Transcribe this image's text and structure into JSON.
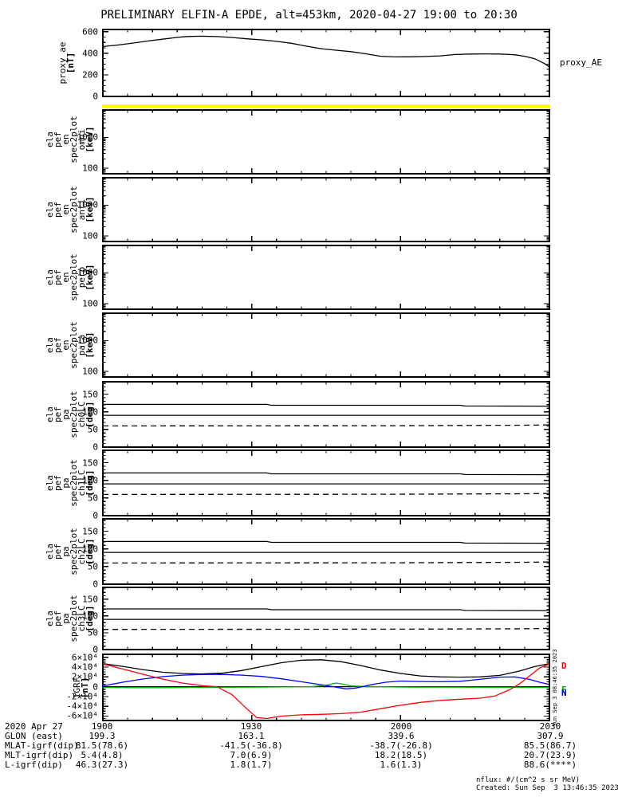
{
  "title": "PRELIMINARY ELFIN-A EPDE, alt=453km, 2020-04-27 19:00 to 20:30",
  "side_stamp": "Sun Sep 3 08:46:35 2023",
  "footer": {
    "nflux": "nflux: #/(cm^2 s sr MeV)",
    "created": "Created: Sun Sep  3 13:46:35 2023"
  },
  "colors": {
    "frame": "#000000",
    "quality_bar": "#ffff00",
    "black_line": "#000000",
    "red_line": "#ff0000",
    "blue_line": "#0000ff",
    "green_line": "#00b400"
  },
  "bottom_table": {
    "rows": [
      {
        "label": "2020 Apr 27",
        "values": [
          "1900",
          "1930",
          "2000",
          "2030"
        ]
      },
      {
        "label": "GLON (east)",
        "values": [
          "199.3",
          "163.1",
          "339.6",
          "307.9"
        ]
      },
      {
        "label": "MLAT-igrf(dip)",
        "values": [
          "81.5(78.6)",
          "-41.5(-36.8)",
          "-38.7(-26.8)",
          "85.5(86.7)"
        ]
      },
      {
        "label": "MLT-igrf(dip)",
        "values": [
          "5.4(4.8)",
          "7.0(6.9)",
          "18.2(18.5)",
          "20.7(23.9)"
        ]
      },
      {
        "label": "L-igrf(dip)",
        "values": [
          "46.3(27.3)",
          "1.8(1.7)",
          "1.6(1.3)",
          "88.6(****)"
        ]
      }
    ]
  },
  "chart_data": [
    {
      "id": "proxy_ae",
      "type": "line",
      "ylabel_words": "proxy_ae",
      "ylabel_unit": "[nT]",
      "right_label": "proxy_AE",
      "xlim": [
        0,
        90
      ],
      "xticks": [
        0,
        30,
        60,
        90
      ],
      "xminor_step": 5,
      "xtick_times": [
        "1900",
        "1930",
        "2000",
        "2030"
      ],
      "ylim": [
        0,
        620
      ],
      "yminor_step": 50,
      "yticks": [
        {
          "v": 0,
          "l": "0"
        },
        {
          "v": 200,
          "l": "200"
        },
        {
          "v": 400,
          "l": "400"
        },
        {
          "v": 600,
          "l": "600"
        }
      ],
      "series": [
        {
          "name": "proxy_AE",
          "color": "#000000",
          "t": [
            0,
            3,
            6,
            9,
            12,
            15,
            17,
            20,
            23,
            26,
            29,
            32,
            35,
            38,
            41,
            44,
            47,
            50,
            53,
            56,
            59,
            62,
            65,
            68,
            71,
            74,
            77,
            80,
            83,
            85,
            87,
            89,
            90
          ],
          "v": [
            462,
            476,
            494,
            513,
            530,
            547,
            555,
            558,
            554,
            546,
            534,
            524,
            510,
            492,
            466,
            442,
            428,
            415,
            395,
            372,
            366,
            367,
            370,
            376,
            388,
            393,
            394,
            393,
            386,
            372,
            350,
            305,
            272
          ]
        }
      ]
    },
    {
      "id": "en_omni",
      "type": "spectrogram",
      "empty": true,
      "topbar": "#ffff00",
      "ylabel_words": "ela\npef\nen\nspec2plot\nomni",
      "ylabel_unit": "[keV]",
      "xlim": [
        0,
        90
      ],
      "xticks": [
        0,
        30,
        60,
        90
      ],
      "xminor_step": 5,
      "yscale": "log",
      "ylim": [
        66,
        7800
      ],
      "yticks": [
        {
          "v": 100,
          "l": "100"
        },
        {
          "v": 1000,
          "l": "1000"
        }
      ],
      "series": []
    },
    {
      "id": "en_anti",
      "type": "spectrogram",
      "empty": true,
      "ylabel_words": "ela\npef\nen\nspec2plot\nanti",
      "ylabel_unit": "[keV]",
      "xlim": [
        0,
        90
      ],
      "xticks": [
        0,
        30,
        60,
        90
      ],
      "xminor_step": 5,
      "yscale": "log",
      "ylim": [
        66,
        7800
      ],
      "yticks": [
        {
          "v": 100,
          "l": "100"
        },
        {
          "v": 1000,
          "l": "1000"
        }
      ],
      "series": []
    },
    {
      "id": "en_perp",
      "type": "spectrogram",
      "empty": true,
      "ylabel_words": "ela\npef\nen\nspec2plot\nperp",
      "ylabel_unit": "[keV]",
      "xlim": [
        0,
        90
      ],
      "xticks": [
        0,
        30,
        60,
        90
      ],
      "xminor_step": 5,
      "yscale": "log",
      "ylim": [
        66,
        7800
      ],
      "yticks": [
        {
          "v": 100,
          "l": "100"
        },
        {
          "v": 1000,
          "l": "1000"
        }
      ],
      "series": []
    },
    {
      "id": "en_para",
      "type": "spectrogram",
      "empty": true,
      "ylabel_words": "ela\npef\nen\nspec2plot\npara",
      "ylabel_unit": "[keV]",
      "xlim": [
        0,
        90
      ],
      "xticks": [
        0,
        30,
        60,
        90
      ],
      "xminor_step": 5,
      "yscale": "log",
      "ylim": [
        66,
        7800
      ],
      "yticks": [
        {
          "v": 100,
          "l": "100"
        },
        {
          "v": 1000,
          "l": "1000"
        }
      ],
      "series": []
    },
    {
      "id": "pa_ch0",
      "type": "line",
      "ylabel_words": "ela\npef\npa\nspec2plot\nch0LC",
      "ylabel_unit": "[deg]",
      "xlim": [
        0,
        90
      ],
      "xticks": [
        0,
        30,
        60,
        90
      ],
      "xminor_step": 5,
      "ylim": [
        0,
        185
      ],
      "yminor_step": 10,
      "yticks": [
        {
          "v": 0,
          "l": "0"
        },
        {
          "v": 50,
          "l": "50"
        },
        {
          "v": 100,
          "l": "100"
        },
        {
          "v": 150,
          "l": "150"
        }
      ],
      "series": [
        {
          "name": "anti-loss-cone",
          "color": "#000000",
          "t": [
            0,
            33,
            34,
            72,
            73,
            90
          ],
          "v": [
            121,
            121,
            118.5,
            118.5,
            116.5,
            116
          ]
        },
        {
          "name": "90deg",
          "color": "#000000",
          "t": [
            0,
            90
          ],
          "v": [
            90,
            90
          ]
        },
        {
          "name": "loss-cone",
          "color": "#000000",
          "dash": "7 5",
          "t": [
            0,
            60,
            85,
            90
          ],
          "v": [
            60,
            60.8,
            62,
            63
          ]
        }
      ]
    },
    {
      "id": "pa_ch1",
      "type": "line",
      "ylabel_words": "ela\npef\npa\nspec2plot\nch1LC",
      "ylabel_unit": "[deg]",
      "xlim": [
        0,
        90
      ],
      "xticks": [
        0,
        30,
        60,
        90
      ],
      "xminor_step": 5,
      "ylim": [
        0,
        185
      ],
      "yminor_step": 10,
      "yticks": [
        {
          "v": 0,
          "l": "0"
        },
        {
          "v": 50,
          "l": "50"
        },
        {
          "v": 100,
          "l": "100"
        },
        {
          "v": 150,
          "l": "150"
        }
      ],
      "series": [
        {
          "name": "anti-loss-cone",
          "color": "#000000",
          "t": [
            0,
            33,
            34,
            72,
            73,
            90
          ],
          "v": [
            121,
            121,
            118.5,
            118.5,
            116.5,
            116
          ]
        },
        {
          "name": "90deg",
          "color": "#000000",
          "t": [
            0,
            90
          ],
          "v": [
            90,
            90
          ]
        },
        {
          "name": "loss-cone",
          "color": "#000000",
          "dash": "7 5",
          "t": [
            0,
            60,
            85,
            90
          ],
          "v": [
            60,
            60.8,
            62,
            63
          ]
        }
      ]
    },
    {
      "id": "pa_ch2",
      "type": "line",
      "ylabel_words": "ela\npef\npa\nspec2plot\nch2LC",
      "ylabel_unit": "[deg]",
      "xlim": [
        0,
        90
      ],
      "xticks": [
        0,
        30,
        60,
        90
      ],
      "xminor_step": 5,
      "ylim": [
        0,
        185
      ],
      "yminor_step": 10,
      "yticks": [
        {
          "v": 0,
          "l": "0"
        },
        {
          "v": 50,
          "l": "50"
        },
        {
          "v": 100,
          "l": "100"
        },
        {
          "v": 150,
          "l": "150"
        }
      ],
      "series": [
        {
          "name": "anti-loss-cone",
          "color": "#000000",
          "t": [
            0,
            33,
            34,
            72,
            73,
            90
          ],
          "v": [
            121,
            121,
            118.5,
            118.5,
            116.5,
            116
          ]
        },
        {
          "name": "90deg",
          "color": "#000000",
          "t": [
            0,
            90
          ],
          "v": [
            90,
            90
          ]
        },
        {
          "name": "loss-cone",
          "color": "#000000",
          "dash": "7 5",
          "t": [
            0,
            60,
            85,
            90
          ],
          "v": [
            60,
            60.8,
            62,
            63
          ]
        }
      ]
    },
    {
      "id": "pa_ch3",
      "type": "line",
      "ylabel_words": "ela\npef\npa\nspec2plot\nch3LC",
      "ylabel_unit": "[deg]",
      "xlim": [
        0,
        90
      ],
      "xticks": [
        0,
        30,
        60,
        90
      ],
      "xminor_step": 5,
      "ylim": [
        0,
        185
      ],
      "yminor_step": 10,
      "yticks": [
        {
          "v": 0,
          "l": "0"
        },
        {
          "v": 50,
          "l": "50"
        },
        {
          "v": 100,
          "l": "100"
        },
        {
          "v": 150,
          "l": "150"
        }
      ],
      "series": [
        {
          "name": "anti-loss-cone",
          "color": "#000000",
          "t": [
            0,
            33,
            34,
            72,
            73,
            90
          ],
          "v": [
            121,
            121,
            118.5,
            118.5,
            116.5,
            116
          ]
        },
        {
          "name": "90deg",
          "color": "#000000",
          "t": [
            0,
            90
          ],
          "v": [
            90,
            90
          ]
        },
        {
          "name": "loss-cone",
          "color": "#000000",
          "dash": "7 5",
          "t": [
            0,
            60,
            85,
            90
          ],
          "v": [
            60,
            60.8,
            62,
            63
          ]
        }
      ]
    },
    {
      "id": "igrf",
      "type": "line",
      "ylabel_words": "IGRF",
      "ylabel_unit": "[nT]",
      "legend": [
        {
          "letter": "D",
          "color": "#ff0000",
          "top_pct": 10
        },
        {
          "letter": "E",
          "color": "#00b400",
          "top_pct": 48
        },
        {
          "letter": "N",
          "color": "#0000ff",
          "top_pct": 51
        }
      ],
      "xlim": [
        0,
        90
      ],
      "xticks": [
        0,
        30,
        60,
        90
      ],
      "xminor_step": 5,
      "ylim": [
        -69000,
        66000
      ],
      "yminor_step": 5000,
      "yticks": [
        {
          "v": 60000,
          "l": "6×10⁴"
        },
        {
          "v": 40000,
          "l": "4×10⁴"
        },
        {
          "v": 20000,
          "l": "2×10⁴"
        },
        {
          "v": 0,
          "l": "0"
        },
        {
          "v": -20000,
          "l": "-2×10⁴"
        },
        {
          "v": -40000,
          "l": "-4×10⁴"
        },
        {
          "v": -60000,
          "l": "-6×10⁴"
        }
      ],
      "series": [
        {
          "name": "zero-line",
          "color": "#000000",
          "t": [
            0,
            90
          ],
          "v": [
            0,
            0
          ]
        },
        {
          "name": "E-east",
          "color": "#00b400",
          "t": [
            0,
            6,
            12,
            18,
            24,
            30,
            36,
            42,
            45,
            47,
            48.5,
            50,
            53,
            58,
            64,
            70,
            76,
            82,
            88,
            90
          ],
          "v": [
            -1500,
            -2000,
            -2000,
            -1500,
            -1200,
            -1000,
            -500,
            0,
            3000,
            7500,
            5000,
            1500,
            500,
            -500,
            -1000,
            -1000,
            -1200,
            -1200,
            -1500,
            -1500
          ]
        },
        {
          "name": "N-north",
          "color": "#0000ff",
          "t": [
            0,
            4,
            8,
            12,
            16,
            20,
            24,
            28,
            32,
            36,
            40,
            44,
            47,
            49,
            51,
            54,
            57,
            60,
            64,
            68,
            72,
            76,
            80,
            83,
            86,
            88,
            90
          ],
          "v": [
            1500,
            9000,
            15500,
            20500,
            23500,
            25000,
            25000,
            23500,
            21000,
            16000,
            10000,
            4000,
            -1000,
            -4500,
            -3000,
            4000,
            9000,
            11500,
            10500,
            10000,
            11000,
            15000,
            19500,
            20000,
            15000,
            9000,
            4500
          ]
        },
        {
          "name": "B-total",
          "color": "#000000",
          "t": [
            0,
            4,
            8,
            12,
            16,
            20,
            24,
            28,
            32,
            36,
            40,
            44,
            48,
            52,
            56,
            60,
            64,
            68,
            72,
            76,
            80,
            84,
            87,
            90
          ],
          "v": [
            47000,
            41500,
            35000,
            29500,
            27000,
            26000,
            27500,
            33000,
            41000,
            49000,
            54000,
            55000,
            51000,
            43000,
            34000,
            27000,
            22000,
            20000,
            19500,
            20000,
            23000,
            32000,
            41000,
            47000
          ]
        },
        {
          "name": "D-down",
          "color": "#ff0000",
          "t": [
            0,
            4,
            8,
            12,
            16,
            20,
            23,
            26,
            29,
            31,
            33,
            36,
            40,
            44,
            48,
            52,
            56,
            60,
            64,
            68,
            72,
            76,
            79,
            82,
            84,
            86,
            88,
            90
          ],
          "v": [
            46500,
            36000,
            25500,
            15500,
            7500,
            2000,
            0,
            -16000,
            -45000,
            -63000,
            -65000,
            -60000,
            -57500,
            -56500,
            -55000,
            -52000,
            -45000,
            -38000,
            -32000,
            -28000,
            -25500,
            -23500,
            -19000,
            -6000,
            6000,
            22000,
            38000,
            46500
          ]
        }
      ]
    }
  ]
}
